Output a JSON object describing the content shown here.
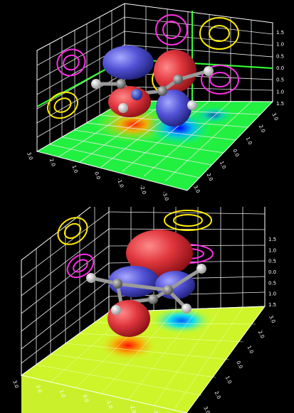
{
  "colors": {
    "background": "#000000",
    "positive_lobe": "#e0363d",
    "negative_lobe": "#5252d6",
    "contour_positive": "#ffea00",
    "contour_negative": "#ff2ee6",
    "contour_zero": "#33ff33",
    "atom_hydrogen": "#f0f0f0",
    "atom_carbon": "#8c8c8c",
    "atom_nitrogen": "#3050c8"
  },
  "panels": [
    {
      "name": "top-orbital-panel",
      "plane": "green",
      "right_ticks": [
        "1.5",
        "1.0",
        "0.5",
        "0.0",
        "0.5",
        "1.0",
        "1.5"
      ],
      "right_depth_ticks": [
        "3.0",
        "2.0",
        "1.0",
        "0.0",
        "1.0",
        "2.0",
        "3.0"
      ],
      "front_ticks": [
        "3.0",
        "2.0",
        "1.0",
        "0.0",
        "-1.0",
        "-2.0",
        "-3.0"
      ]
    },
    {
      "name": "bottom-orbital-panel",
      "plane": "yellow",
      "right_ticks": [
        "1.5",
        "1.0",
        "0.5",
        "0.0",
        "0.5",
        "1.0",
        "1.5"
      ],
      "right_depth_ticks": [
        "3.0",
        "2.0",
        "1.0",
        "0.0",
        "1.0",
        "2.0",
        "3.0"
      ],
      "front_ticks": [
        "3.0",
        "2.0",
        "1.0",
        "0.0",
        "-1.0",
        "-2.0",
        "-3.0"
      ]
    }
  ]
}
